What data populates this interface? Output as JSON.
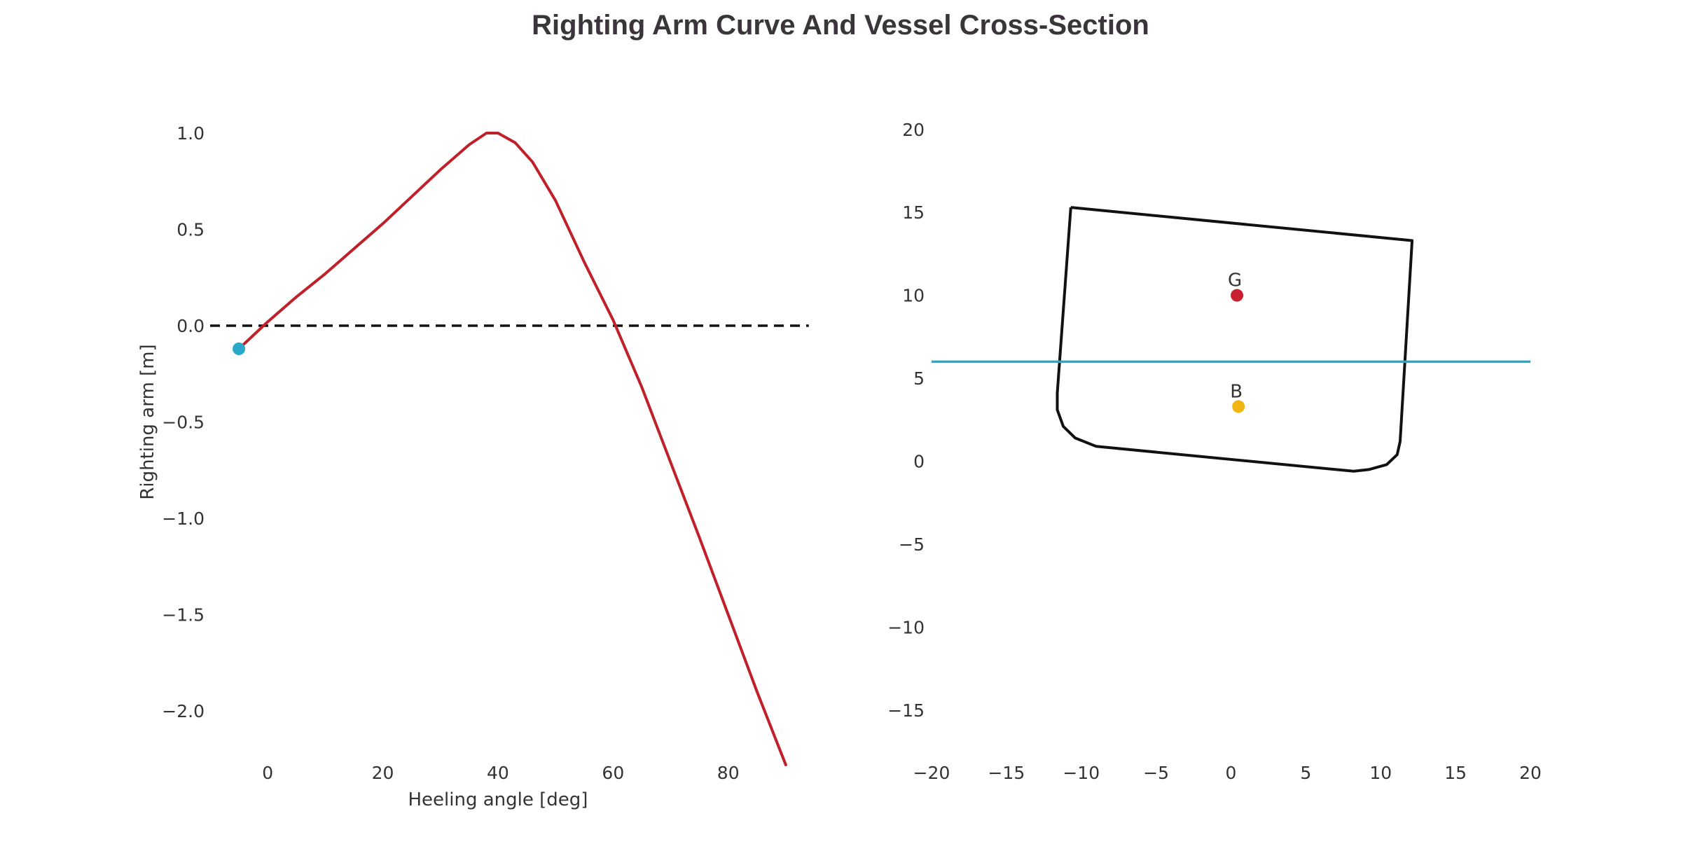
{
  "figure": {
    "title": "Righting Arm Curve And Vessel Cross-Section"
  },
  "chart_data": [
    {
      "type": "line",
      "title": "",
      "xlabel": "Heeling angle [deg]",
      "ylabel": "Righting arm [m]",
      "xlim": [
        -10,
        95
      ],
      "ylim": [
        -2.2,
        1.2
      ],
      "xticks": [
        0,
        20,
        40,
        60,
        80
      ],
      "xtick_labels": [
        "0",
        "20",
        "40",
        "60",
        "80"
      ],
      "yticks": [
        1.0,
        0.5,
        0.0,
        -0.5,
        -1.0,
        -1.5,
        -2.0
      ],
      "ytick_labels": [
        "1.0",
        "0.5",
        "0.0",
        "−0.5",
        "−1.0",
        "−1.5",
        "−2.0"
      ],
      "grid": false,
      "series": [
        {
          "color": "#c0202a",
          "x": [
            -5,
            0,
            5,
            10,
            15,
            20,
            25,
            30,
            35,
            38,
            40,
            43,
            46,
            50,
            55,
            60,
            65,
            70,
            75,
            80,
            85,
            90
          ],
          "y": [
            -0.12,
            0.02,
            0.15,
            0.27,
            0.4,
            0.53,
            0.67,
            0.81,
            0.94,
            1.0,
            1.0,
            0.95,
            0.85,
            0.65,
            0.33,
            0.03,
            -0.32,
            -0.71,
            -1.1,
            -1.5,
            -1.9,
            -2.28
          ]
        }
      ],
      "reference_line": {
        "y": 0.0,
        "style": "dashed",
        "color": "#111111",
        "x": [
          -10,
          94
        ]
      },
      "marker": {
        "x": -5,
        "y": -0.12,
        "color": "#2aa8c9"
      }
    },
    {
      "type": "scatter",
      "title": "",
      "xlabel": "",
      "ylabel": "",
      "xlim": [
        -20,
        20
      ],
      "ylim": [
        -18,
        24
      ],
      "xticks": [
        -20,
        -15,
        -10,
        -5,
        0,
        5,
        10,
        15,
        20
      ],
      "xtick_labels": [
        "−20",
        "−15",
        "−10",
        "−5",
        "0",
        "5",
        "10",
        "15",
        "20"
      ],
      "yticks": [
        20,
        15,
        10,
        5,
        0,
        -5,
        -10,
        -15
      ],
      "ytick_labels": [
        "20",
        "15",
        "10",
        "5",
        "0",
        "−5",
        "−10",
        "−15"
      ],
      "grid": false,
      "hull": {
        "color": "#111111",
        "x": [
          -10.7,
          12.1,
          11.3,
          11.1,
          10.4,
          9.2,
          8.2,
          -9,
          -10.4,
          -11.2,
          -11.6,
          -11.6,
          -10.7
        ],
        "y": [
          15.3,
          13.3,
          1.2,
          0.4,
          -0.2,
          -0.5,
          -0.6,
          0.9,
          1.4,
          2.1,
          3.1,
          4.1,
          15.3
        ]
      },
      "waterline": {
        "y": 6.0,
        "x": [
          -20,
          20
        ],
        "color": "#2aa8c9"
      },
      "points": [
        {
          "label": "G",
          "x": 0.4,
          "y": 10.0,
          "color": "#c82030"
        },
        {
          "label": "B",
          "x": 0.5,
          "y": 3.3,
          "color": "#f0b414"
        }
      ]
    }
  ]
}
